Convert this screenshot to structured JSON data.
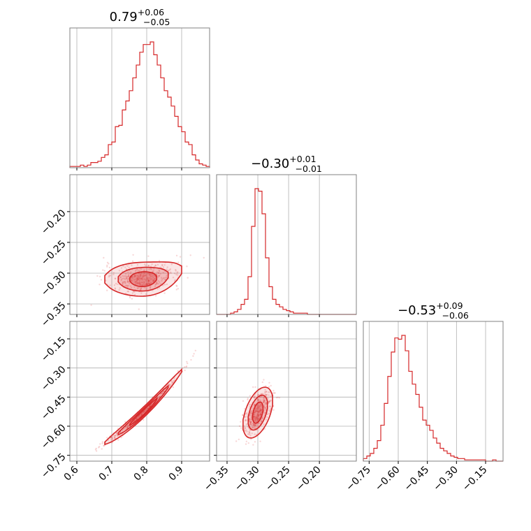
{
  "chart_data": {
    "type": "corner",
    "color": "#d62728",
    "parameters": [
      {
        "median": "0.79",
        "plus": "+0.06",
        "minus": "−0.05",
        "range": [
          0.58,
          0.98
        ],
        "ticks": [
          0.6,
          0.7,
          0.8,
          0.9
        ],
        "tick_labels": [
          "0.6",
          "0.7",
          "0.8",
          "0.9"
        ]
      },
      {
        "median": "−0.30",
        "plus": "+0.01",
        "minus": "−0.01",
        "range": [
          -0.367,
          -0.14
        ],
        "ticks": [
          -0.35,
          -0.3,
          -0.25,
          -0.2
        ],
        "tick_labels": [
          "−0.35",
          "−0.30",
          "−0.25",
          "−0.20"
        ]
      },
      {
        "median": "−0.53",
        "plus": "+0.09",
        "minus": "−0.06",
        "range": [
          -0.78,
          -0.06
        ],
        "ticks": [
          -0.75,
          -0.6,
          -0.45,
          -0.3,
          -0.15
        ],
        "tick_labels": [
          "−0.75",
          "−0.60",
          "−0.45",
          "−0.30",
          "−0.15"
        ]
      }
    ],
    "row_axis_ranges": {
      "1": [
        -0.367,
        -0.14
      ],
      "2": [
        -0.78,
        -0.06
      ]
    },
    "row_axis_ticks": {
      "1": {
        "ticks": [
          -0.35,
          -0.3,
          -0.25,
          -0.2
        ],
        "labels": [
          "−0.35",
          "−0.30",
          "−0.25",
          "−0.20"
        ]
      },
      "2": {
        "ticks": [
          -0.75,
          -0.6,
          -0.45,
          -0.3,
          -0.15
        ],
        "labels": [
          "−0.75",
          "−0.60",
          "−0.45",
          "−0.30",
          "−0.15"
        ]
      }
    },
    "histograms": [
      {
        "edges_range": [
          0.58,
          0.98
        ],
        "counts": [
          1,
          1,
          1,
          2,
          1,
          2,
          4,
          4,
          5,
          8,
          10,
          18,
          20,
          32,
          33,
          45,
          52,
          60,
          70,
          80,
          90,
          96,
          96,
          98,
          88,
          80,
          70,
          60,
          55,
          48,
          40,
          32,
          28,
          20,
          18,
          10,
          6,
          3,
          2,
          1
        ]
      },
      {
        "edges_range": [
          -0.367,
          -0.14
        ],
        "counts": [
          0,
          0,
          0,
          0,
          1,
          2,
          4,
          8,
          12,
          30,
          70,
          100,
          98,
          80,
          45,
          22,
          12,
          8,
          6,
          4,
          3,
          2,
          1,
          1,
          1,
          1,
          0,
          0,
          0,
          0,
          0,
          0,
          0,
          0,
          0,
          0,
          0,
          0,
          0,
          0
        ]
      },
      {
        "edges_range": [
          -0.78,
          -0.06
        ],
        "counts": [
          2,
          4,
          6,
          10,
          16,
          28,
          45,
          66,
          85,
          96,
          95,
          98,
          86,
          70,
          60,
          52,
          42,
          32,
          28,
          24,
          18,
          14,
          10,
          8,
          6,
          4,
          3,
          2,
          2,
          1,
          1,
          1,
          1,
          1,
          1,
          0,
          0,
          1,
          0,
          0
        ]
      }
    ],
    "joint": [
      {
        "x_param": 0,
        "y_param": 1,
        "relation": "y = -0.31 + 0.28*max(0, x-0.78)^2 + 0.02*max(0, x-0.78)"
      },
      {
        "x_param": 0,
        "y_param": 2,
        "relation": "y = -0.53 + 1.7*(x-0.79) + 2.4*(x-0.79)^2"
      },
      {
        "x_param": 1,
        "y_param": 2,
        "relation": "y = -0.53 + 2.6*(x+0.30)"
      }
    ],
    "grid": true
  }
}
